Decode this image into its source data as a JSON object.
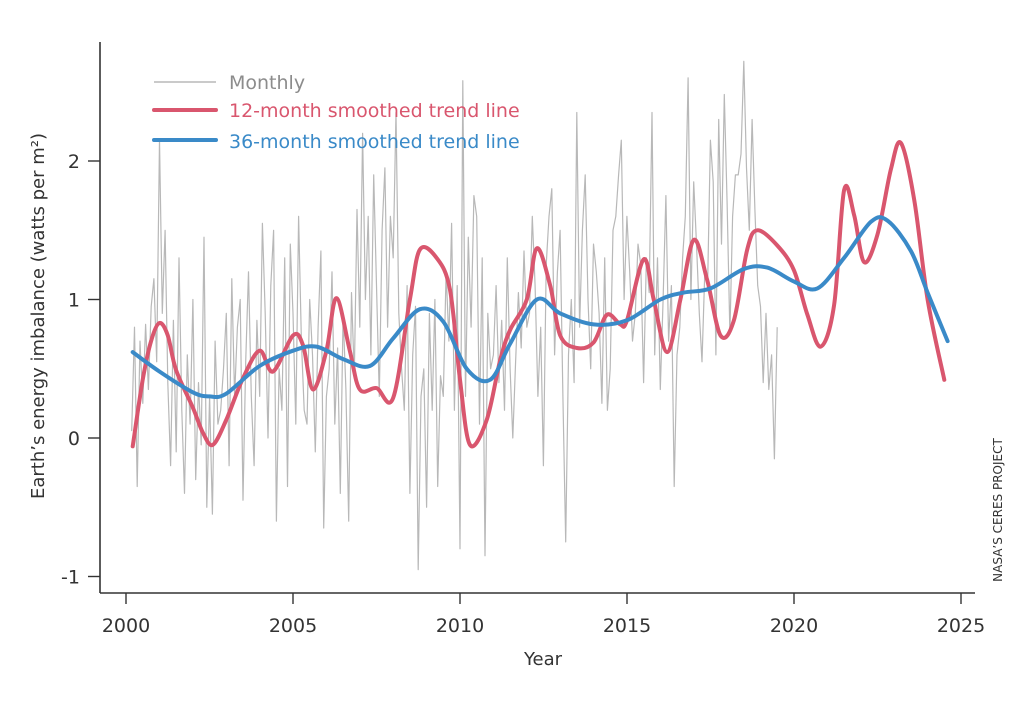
{
  "chart_data": {
    "type": "line",
    "title": "",
    "xlabel": "Year",
    "ylabel": "Earth’s energy imbalance (watts per m²)",
    "xlim": [
      1999.2,
      2025.4
    ],
    "ylim": [
      -1.1,
      2.85
    ],
    "xticks": [
      2000,
      2005,
      2010,
      2015,
      2020,
      2025
    ],
    "xtick_labels": [
      "2000",
      "2005",
      "2010",
      "2015",
      "2020",
      "2025"
    ],
    "yticks": [
      -1,
      0,
      1,
      2
    ],
    "ytick_labels": [
      "-1",
      "0",
      "1",
      "2"
    ],
    "grid": false,
    "legend_position": "top-left",
    "credit": "NASA’S CERES PROJECT",
    "series": [
      {
        "name": "Monthly",
        "color": "#b8b8b8",
        "x_start": 2000.17,
        "x_step": 0.0833,
        "values": [
          0.05,
          0.8,
          -0.35,
          0.7,
          0.25,
          0.82,
          0.35,
          0.95,
          1.15,
          0.55,
          2.15,
          0.9,
          1.5,
          0.4,
          -0.2,
          0.85,
          -0.1,
          1.3,
          0.2,
          -0.4,
          0.6,
          0.1,
          1.0,
          -0.3,
          0.4,
          -0.05,
          1.45,
          -0.5,
          0.3,
          -0.55,
          0.7,
          0.1,
          0.2,
          0.5,
          0.9,
          -0.2,
          1.15,
          0.3,
          0.8,
          1.0,
          -0.45,
          0.55,
          1.2,
          0.3,
          -0.2,
          0.85,
          0.3,
          1.55,
          0.9,
          0.0,
          1.1,
          1.5,
          -0.6,
          0.5,
          0.2,
          1.3,
          -0.35,
          1.4,
          0.9,
          0.1,
          1.6,
          0.7,
          0.2,
          0.1,
          1.0,
          0.6,
          -0.1,
          0.8,
          1.35,
          -0.65,
          0.3,
          0.5,
          1.2,
          0.1,
          0.65,
          -0.4,
          0.9,
          0.35,
          -0.6,
          1.05,
          0.45,
          1.65,
          0.8,
          2.2,
          1.0,
          1.6,
          0.6,
          1.9,
          1.1,
          0.3,
          1.5,
          1.95,
          0.8,
          1.6,
          1.3,
          2.35,
          0.9,
          0.5,
          0.2,
          1.1,
          -0.4,
          0.6,
          0.95,
          -0.95,
          0.3,
          0.5,
          -0.5,
          0.9,
          0.2,
          1.0,
          -0.35,
          0.45,
          0.3,
          1.2,
          0.7,
          1.55,
          0.2,
          1.1,
          -0.8,
          2.58,
          0.3,
          1.45,
          0.8,
          1.75,
          1.6,
          0.1,
          1.3,
          -0.85,
          0.9,
          0.5,
          0.6,
          1.1,
          0.4,
          0.85,
          0.2,
          1.3,
          0.5,
          0.0,
          0.55,
          1.05,
          0.65,
          1.35,
          0.8,
          0.9,
          1.6,
          1.1,
          0.3,
          0.8,
          -0.2,
          1.25,
          1.6,
          1.8,
          0.6,
          1.2,
          1.5,
          0.3,
          -0.75,
          0.6,
          1.0,
          0.4,
          2.35,
          0.8,
          1.5,
          1.9,
          1.0,
          0.5,
          1.4,
          1.2,
          0.9,
          0.25,
          1.3,
          0.2,
          0.5,
          1.5,
          1.6,
          1.9,
          2.15,
          1.0,
          1.6,
          1.2,
          0.7,
          0.9,
          1.4,
          1.25,
          0.4,
          1.3,
          1.05,
          2.35,
          0.6,
          1.3,
          0.35,
          1.0,
          1.75,
          0.7,
          1.1,
          -0.35,
          0.6,
          0.8,
          1.3,
          1.6,
          2.6,
          1.0,
          1.85,
          1.4,
          0.9,
          0.55,
          1.2,
          1.1,
          2.15,
          1.85,
          0.6,
          2.3,
          1.4,
          2.48,
          1.7,
          0.75,
          1.6,
          1.9,
          1.9,
          2.05,
          2.72,
          1.95,
          1.5,
          2.3,
          1.65,
          1.1,
          0.95,
          0.4,
          0.9,
          0.35,
          0.6,
          -0.15,
          0.8
        ]
      },
      {
        "name": "12-month smoothed trend line",
        "color": "#d9566e",
        "points": [
          [
            2000.2,
            -0.06
          ],
          [
            2000.5,
            0.42
          ],
          [
            2000.75,
            0.7
          ],
          [
            2001.0,
            0.83
          ],
          [
            2001.25,
            0.74
          ],
          [
            2001.5,
            0.49
          ],
          [
            2002.0,
            0.22
          ],
          [
            2002.3,
            0.04
          ],
          [
            2002.6,
            -0.05
          ],
          [
            2003.0,
            0.13
          ],
          [
            2003.5,
            0.43
          ],
          [
            2004.0,
            0.63
          ],
          [
            2004.4,
            0.48
          ],
          [
            2005.0,
            0.74
          ],
          [
            2005.3,
            0.67
          ],
          [
            2005.6,
            0.35
          ],
          [
            2006.0,
            0.63
          ],
          [
            2006.3,
            1.01
          ],
          [
            2006.7,
            0.63
          ],
          [
            2007.0,
            0.35
          ],
          [
            2007.5,
            0.36
          ],
          [
            2008.0,
            0.29
          ],
          [
            2008.5,
            1.0
          ],
          [
            2008.8,
            1.36
          ],
          [
            2009.3,
            1.3
          ],
          [
            2009.7,
            1.07
          ],
          [
            2010.0,
            0.42
          ],
          [
            2010.3,
            -0.05
          ],
          [
            2010.8,
            0.13
          ],
          [
            2011.2,
            0.56
          ],
          [
            2011.5,
            0.78
          ],
          [
            2012.0,
            1.0
          ],
          [
            2012.3,
            1.37
          ],
          [
            2012.7,
            1.1
          ],
          [
            2013.0,
            0.74
          ],
          [
            2013.5,
            0.65
          ],
          [
            2014.0,
            0.69
          ],
          [
            2014.4,
            0.89
          ],
          [
            2014.8,
            0.82
          ],
          [
            2015.0,
            0.85
          ],
          [
            2015.5,
            1.29
          ],
          [
            2015.8,
            1.0
          ],
          [
            2016.2,
            0.62
          ],
          [
            2016.6,
            1.0
          ],
          [
            2017.0,
            1.43
          ],
          [
            2017.4,
            1.14
          ],
          [
            2017.8,
            0.74
          ],
          [
            2018.2,
            0.85
          ],
          [
            2018.6,
            1.36
          ],
          [
            2018.9,
            1.5
          ],
          [
            2019.5,
            1.39
          ],
          [
            2020.0,
            1.21
          ],
          [
            2020.4,
            0.89
          ],
          [
            2020.8,
            0.66
          ],
          [
            2021.2,
            0.96
          ],
          [
            2021.5,
            1.79
          ],
          [
            2021.8,
            1.61
          ],
          [
            2022.1,
            1.27
          ],
          [
            2022.5,
            1.47
          ],
          [
            2022.9,
            1.94
          ],
          [
            2023.2,
            2.13
          ],
          [
            2023.6,
            1.72
          ],
          [
            2024.0,
            1.0
          ],
          [
            2024.5,
            0.42
          ]
        ]
      },
      {
        "name": "36-month smoothed trend line",
        "color": "#3a8ac8",
        "points": [
          [
            2000.2,
            0.62
          ],
          [
            2001.0,
            0.48
          ],
          [
            2002.0,
            0.33
          ],
          [
            2002.5,
            0.3
          ],
          [
            2003.0,
            0.32
          ],
          [
            2004.0,
            0.52
          ],
          [
            2005.0,
            0.63
          ],
          [
            2005.7,
            0.66
          ],
          [
            2006.5,
            0.57
          ],
          [
            2007.3,
            0.52
          ],
          [
            2008.0,
            0.72
          ],
          [
            2008.8,
            0.93
          ],
          [
            2009.5,
            0.84
          ],
          [
            2010.2,
            0.5
          ],
          [
            2010.9,
            0.42
          ],
          [
            2011.5,
            0.68
          ],
          [
            2012.3,
            1.0
          ],
          [
            2013.0,
            0.9
          ],
          [
            2014.0,
            0.82
          ],
          [
            2015.0,
            0.85
          ],
          [
            2016.0,
            1.0
          ],
          [
            2016.7,
            1.05
          ],
          [
            2017.5,
            1.08
          ],
          [
            2018.5,
            1.22
          ],
          [
            2019.2,
            1.23
          ],
          [
            2020.0,
            1.13
          ],
          [
            2020.7,
            1.08
          ],
          [
            2021.5,
            1.3
          ],
          [
            2022.3,
            1.56
          ],
          [
            2022.8,
            1.57
          ],
          [
            2023.5,
            1.35
          ],
          [
            2024.0,
            1.05
          ],
          [
            2024.6,
            0.7
          ]
        ]
      }
    ]
  }
}
